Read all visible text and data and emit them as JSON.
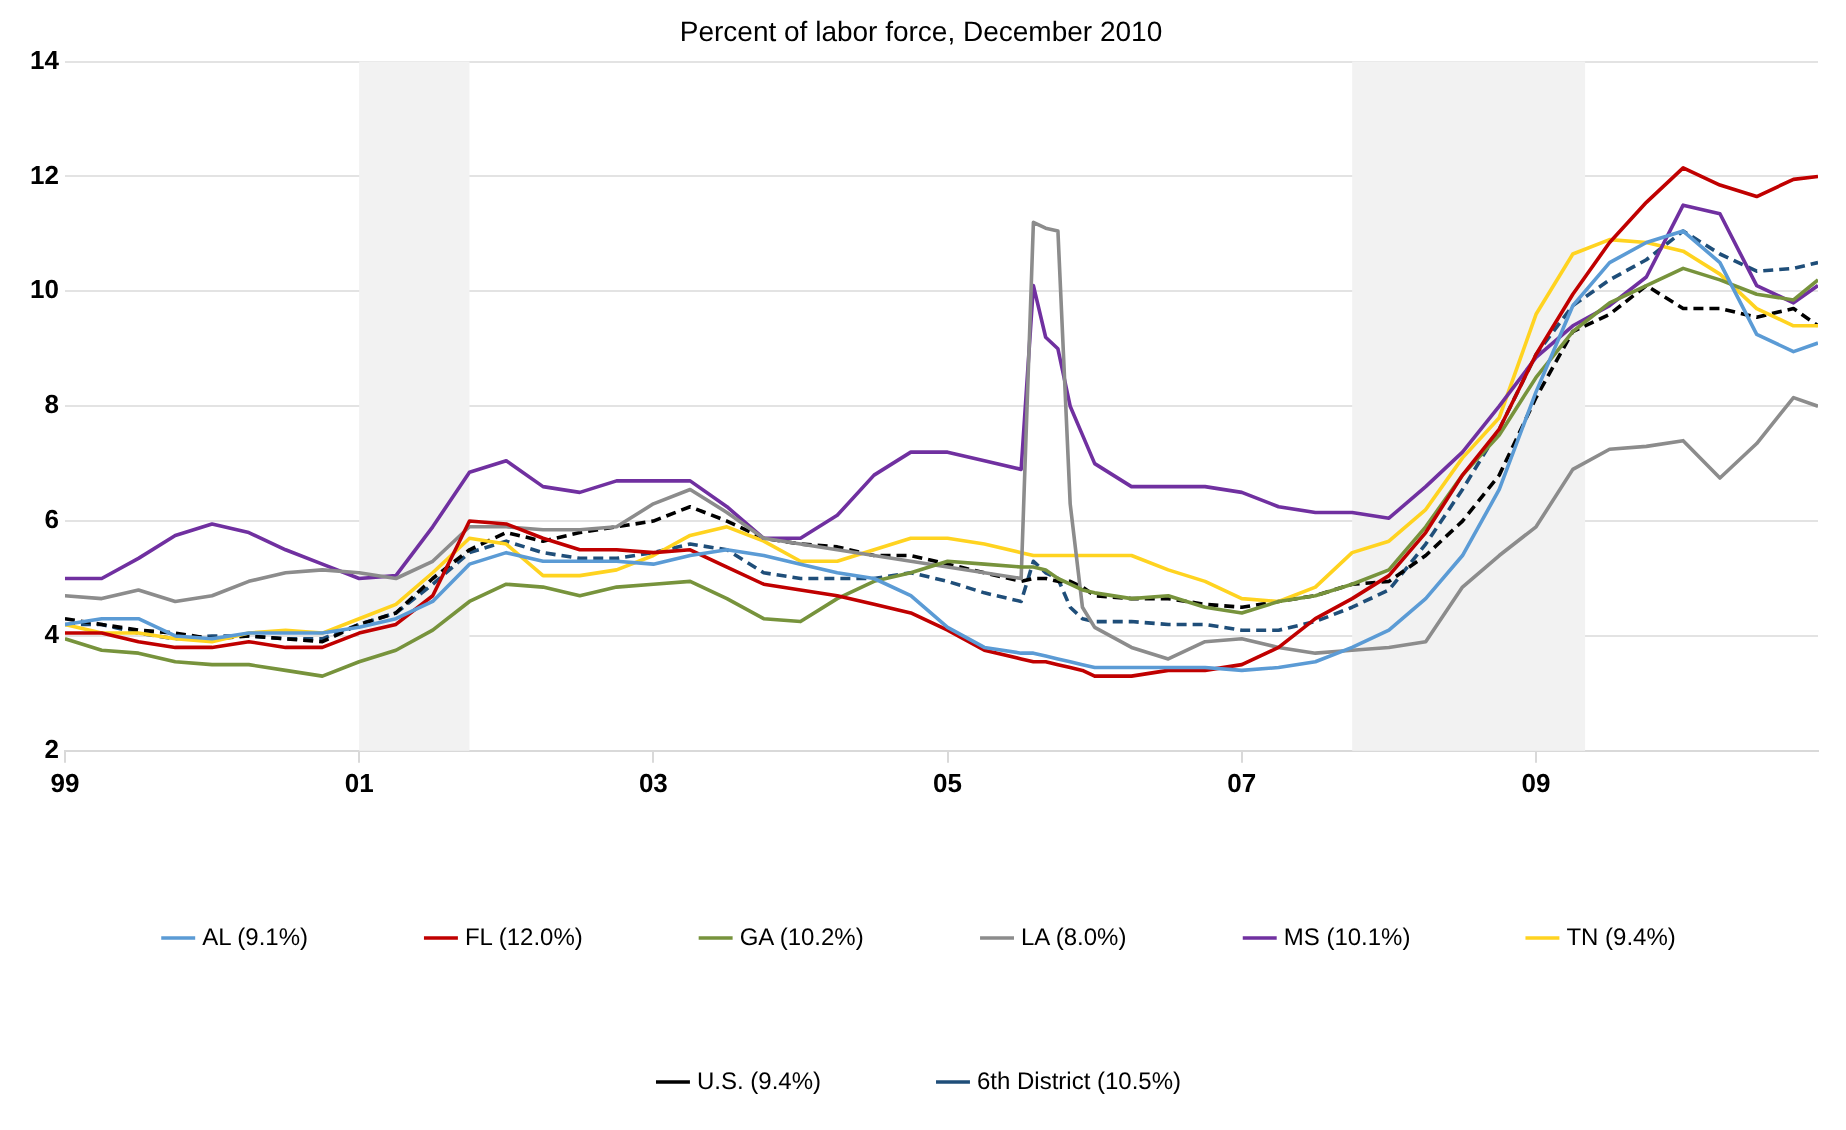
{
  "chart_data": {
    "type": "line",
    "title": "Percent of labor force, December 2010",
    "x": [
      "1999-01",
      "1999-04",
      "1999-07",
      "1999-10",
      "2000-01",
      "2000-04",
      "2000-07",
      "2000-10",
      "2001-01",
      "2001-04",
      "2001-07",
      "2001-10",
      "2002-01",
      "2002-04",
      "2002-07",
      "2002-10",
      "2003-01",
      "2003-04",
      "2003-07",
      "2003-10",
      "2004-01",
      "2004-04",
      "2004-07",
      "2004-10",
      "2005-01",
      "2005-04",
      "2005-07",
      "2005-08",
      "2005-09",
      "2005-10",
      "2005-11",
      "2005-12",
      "2006-01",
      "2006-04",
      "2006-07",
      "2006-10",
      "2007-01",
      "2007-04",
      "2007-07",
      "2007-10",
      "2008-01",
      "2008-04",
      "2008-07",
      "2008-10",
      "2009-01",
      "2009-04",
      "2009-07",
      "2009-10",
      "2010-01",
      "2010-04",
      "2010-07",
      "2010-10",
      "2010-12"
    ],
    "series": [
      {
        "name": "AL (9.1%)",
        "color": "#5b9bd5",
        "values": [
          4.2,
          4.3,
          4.3,
          4.0,
          3.95,
          4.05,
          4.05,
          4.05,
          4.15,
          4.3,
          4.6,
          5.25,
          5.45,
          5.3,
          5.3,
          5.3,
          5.25,
          5.4,
          5.5,
          5.4,
          5.25,
          5.1,
          5.0,
          4.7,
          4.15,
          3.8,
          3.7,
          3.7,
          3.65,
          3.6,
          3.55,
          3.5,
          3.45,
          3.45,
          3.45,
          3.45,
          3.4,
          3.45,
          3.55,
          3.8,
          4.1,
          4.65,
          5.4,
          6.55,
          8.25,
          9.75,
          10.5,
          10.85,
          11.05,
          10.5,
          9.25,
          8.95,
          9.1
        ]
      },
      {
        "name": "FL (12.0%)",
        "color": "#c00000",
        "values": [
          4.05,
          4.05,
          3.9,
          3.8,
          3.8,
          3.9,
          3.8,
          3.8,
          4.05,
          4.2,
          4.7,
          6.0,
          5.95,
          5.7,
          5.5,
          5.5,
          5.45,
          5.5,
          5.2,
          4.9,
          4.8,
          4.7,
          4.55,
          4.4,
          4.1,
          3.75,
          3.6,
          3.55,
          3.55,
          3.5,
          3.45,
          3.4,
          3.3,
          3.3,
          3.4,
          3.4,
          3.5,
          3.8,
          4.3,
          4.65,
          5.05,
          5.8,
          6.8,
          7.6,
          8.9,
          9.95,
          10.85,
          11.55,
          12.15,
          11.85,
          11.65,
          11.95,
          12.0
        ]
      },
      {
        "name": "GA (10.2%)",
        "color": "#77933c",
        "values": [
          3.95,
          3.75,
          3.7,
          3.55,
          3.5,
          3.5,
          3.4,
          3.3,
          3.55,
          3.75,
          4.1,
          4.6,
          4.9,
          4.85,
          4.7,
          4.85,
          4.9,
          4.95,
          4.65,
          4.3,
          4.25,
          4.65,
          4.95,
          5.1,
          5.3,
          5.25,
          5.2,
          5.2,
          5.15,
          5.0,
          4.9,
          4.8,
          4.75,
          4.65,
          4.7,
          4.5,
          4.4,
          4.6,
          4.7,
          4.9,
          5.15,
          5.9,
          6.8,
          7.5,
          8.5,
          9.3,
          9.8,
          10.1,
          10.4,
          10.2,
          9.95,
          9.85,
          10.2
        ]
      },
      {
        "name": "LA (8.0%)",
        "color": "#8c8c8c",
        "values": [
          4.7,
          4.65,
          4.8,
          4.6,
          4.7,
          4.95,
          5.1,
          5.15,
          5.1,
          5.0,
          5.3,
          5.9,
          5.9,
          5.85,
          5.85,
          5.9,
          6.3,
          6.55,
          6.15,
          5.7,
          5.6,
          5.5,
          5.4,
          5.3,
          5.2,
          5.1,
          5.0,
          11.2,
          11.1,
          11.05,
          6.3,
          4.5,
          4.15,
          3.8,
          3.6,
          3.9,
          3.95,
          3.8,
          3.7,
          3.75,
          3.8,
          3.9,
          4.85,
          5.4,
          5.9,
          6.9,
          7.25,
          7.3,
          7.4,
          6.75,
          7.35,
          8.15,
          8.0
        ]
      },
      {
        "name": "MS (10.1%)",
        "color": "#7030a0",
        "values": [
          5.0,
          5.0,
          5.35,
          5.75,
          5.95,
          5.8,
          5.5,
          5.25,
          5.0,
          5.05,
          5.9,
          6.85,
          7.05,
          6.6,
          6.5,
          6.7,
          6.7,
          6.7,
          6.25,
          5.7,
          5.7,
          6.1,
          6.8,
          7.2,
          7.2,
          7.05,
          6.9,
          10.1,
          9.2,
          9.0,
          8.0,
          7.5,
          7.0,
          6.6,
          6.6,
          6.6,
          6.5,
          6.25,
          6.15,
          6.15,
          6.05,
          6.6,
          7.2,
          8.0,
          8.85,
          9.4,
          9.75,
          10.25,
          11.5,
          11.35,
          10.1,
          9.8,
          10.1
        ]
      },
      {
        "name": "TN (9.4%)",
        "color": "#ffd320",
        "values": [
          4.2,
          4.05,
          4.05,
          3.95,
          3.9,
          4.05,
          4.1,
          4.05,
          4.3,
          4.55,
          5.1,
          5.7,
          5.6,
          5.05,
          5.05,
          5.15,
          5.4,
          5.75,
          5.9,
          5.65,
          5.3,
          5.3,
          5.5,
          5.7,
          5.7,
          5.6,
          5.45,
          5.4,
          5.4,
          5.4,
          5.4,
          5.4,
          5.4,
          5.4,
          5.15,
          4.95,
          4.65,
          4.6,
          4.85,
          5.45,
          5.65,
          6.2,
          7.1,
          7.8,
          9.6,
          10.65,
          10.9,
          10.85,
          10.7,
          10.3,
          9.7,
          9.4,
          9.4
        ]
      },
      {
        "name": "U.S. (9.4%)",
        "color": "#000000",
        "line_style": "dashed",
        "values": [
          4.3,
          4.2,
          4.1,
          4.05,
          3.95,
          4.0,
          3.95,
          3.9,
          4.2,
          4.4,
          5.0,
          5.5,
          5.8,
          5.65,
          5.8,
          5.9,
          6.0,
          6.25,
          6.0,
          5.7,
          5.6,
          5.55,
          5.4,
          5.4,
          5.25,
          5.1,
          4.95,
          5.0,
          5.0,
          4.95,
          4.95,
          4.85,
          4.7,
          4.65,
          4.65,
          4.55,
          4.5,
          4.6,
          4.7,
          4.9,
          4.95,
          5.4,
          6.0,
          6.8,
          8.15,
          9.3,
          9.6,
          10.1,
          9.7,
          9.7,
          9.55,
          9.7,
          9.4
        ]
      },
      {
        "name": "6th District (10.5%)",
        "color": "#1f4e79",
        "line_style": "dashed",
        "values": [
          4.2,
          4.2,
          4.05,
          3.95,
          4.0,
          4.0,
          3.95,
          3.95,
          4.2,
          4.4,
          4.9,
          5.45,
          5.65,
          5.45,
          5.35,
          5.35,
          5.45,
          5.6,
          5.5,
          5.1,
          5.0,
          5.0,
          5.0,
          5.1,
          4.95,
          4.75,
          4.6,
          5.3,
          5.1,
          5.0,
          4.5,
          4.3,
          4.25,
          4.25,
          4.2,
          4.2,
          4.1,
          4.1,
          4.25,
          4.5,
          4.8,
          5.6,
          6.55,
          7.6,
          8.9,
          9.75,
          10.2,
          10.55,
          11.05,
          10.65,
          10.35,
          10.4,
          10.5
        ]
      }
    ],
    "xlim": [
      "1999-01",
      "2010-12"
    ],
    "xticks": [
      {
        "value": "1999-01",
        "label": "99"
      },
      {
        "value": "2001-01",
        "label": "01"
      },
      {
        "value": "2003-01",
        "label": "03"
      },
      {
        "value": "2005-01",
        "label": "05"
      },
      {
        "value": "2007-01",
        "label": "07"
      },
      {
        "value": "2009-01",
        "label": "09"
      }
    ],
    "ylim": [
      2,
      14
    ],
    "yticks": [
      2,
      4,
      6,
      8,
      10,
      12,
      14
    ],
    "bands": [
      {
        "axis": "x",
        "from": "2001-01",
        "to": "2001-10",
        "color": "#f2f2f2"
      },
      {
        "axis": "x",
        "from": "2007-10",
        "to": "2009-05",
        "color": "#f2f2f2"
      }
    ],
    "grid": "y",
    "legend": "bottom",
    "marker": "none",
    "line_style": "solid"
  }
}
